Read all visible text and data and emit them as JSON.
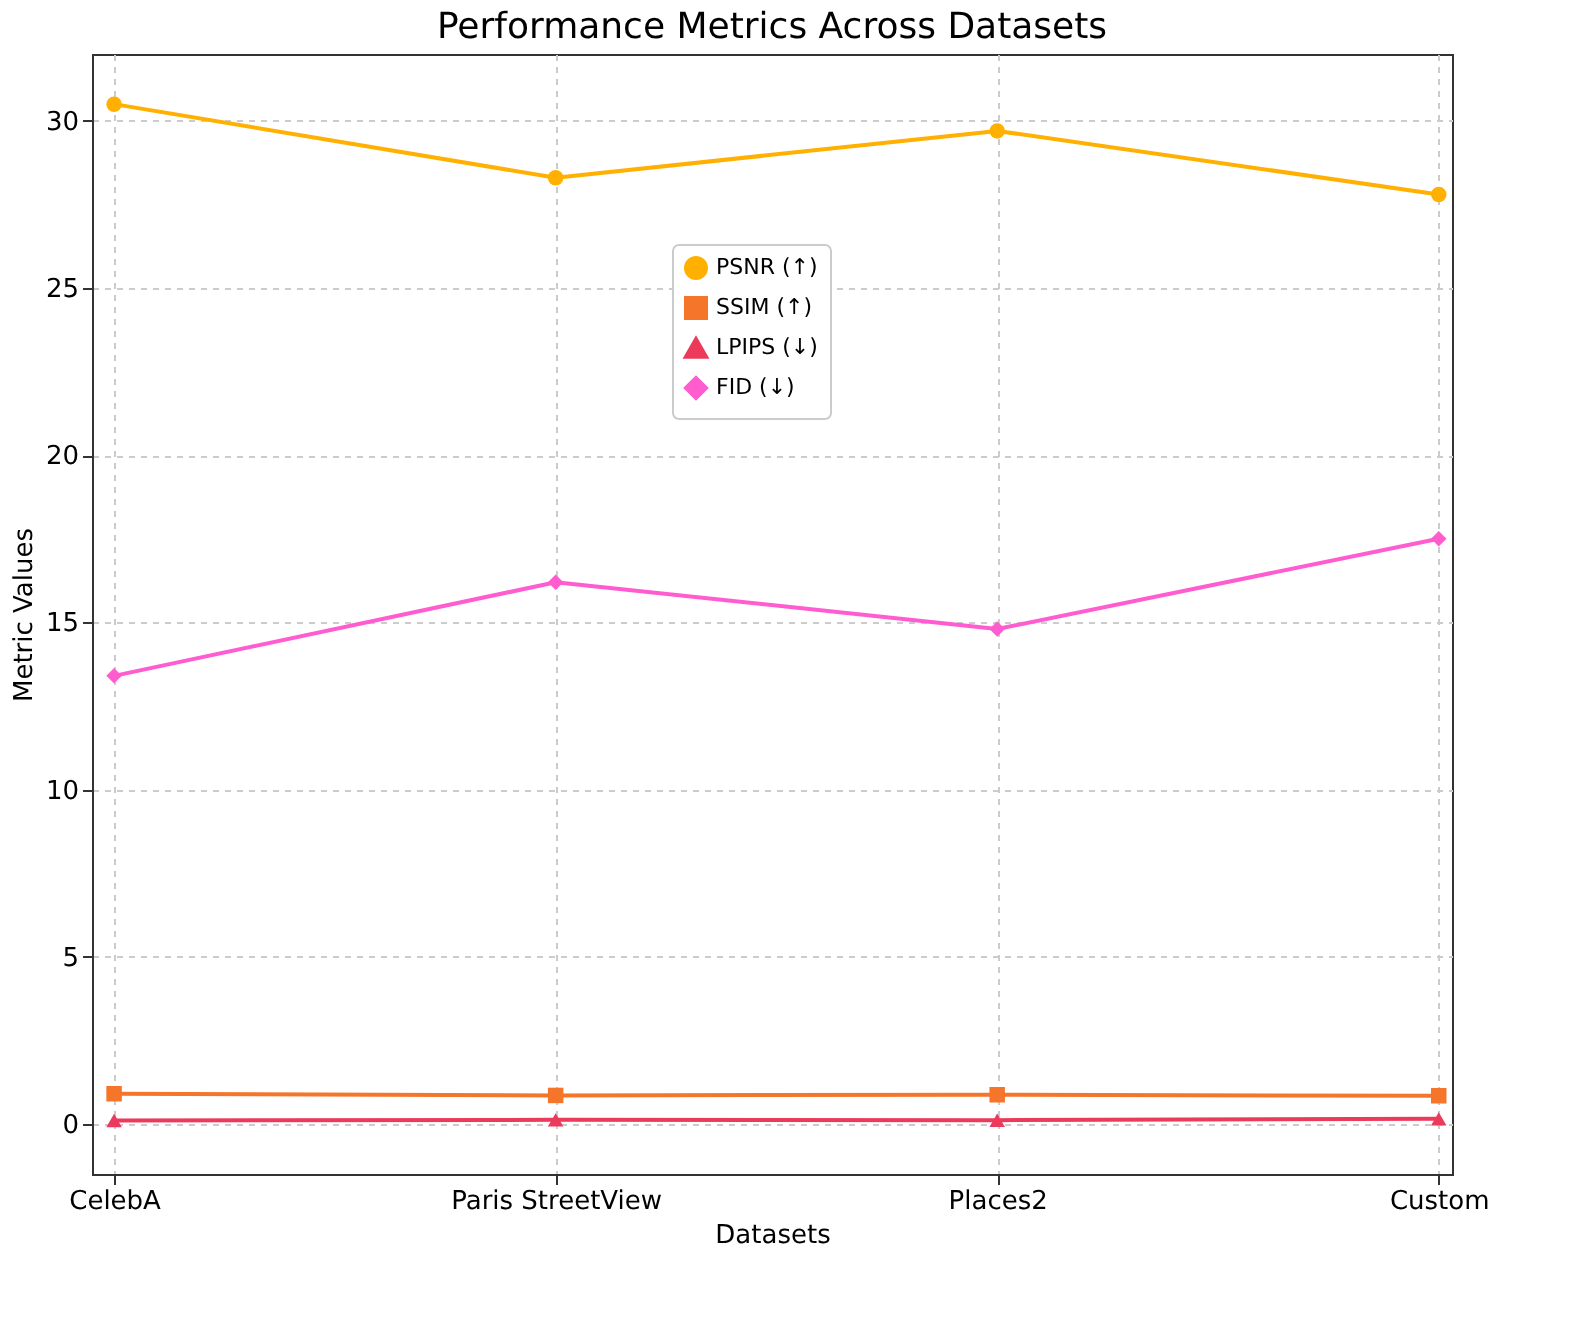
{
  "chart_data": {
    "type": "line",
    "title": "Performance Metrics Across Datasets",
    "xlabel": "Datasets",
    "ylabel": "Metric Values",
    "categories": [
      "CelebA",
      "Paris StreetView",
      "Places2",
      "Custom"
    ],
    "series": [
      {
        "name": "PSNR (↑)",
        "color": "#ffb000",
        "marker": "circle",
        "values": [
          30.5,
          28.3,
          29.7,
          27.8
        ]
      },
      {
        "name": "SSIM (↑)",
        "color": "#f5752b",
        "marker": "square",
        "values": [
          0.9,
          0.85,
          0.87,
          0.84
        ]
      },
      {
        "name": "LPIPS (↓)",
        "color": "#ec3a5c",
        "marker": "triangle",
        "values": [
          0.1,
          0.12,
          0.11,
          0.15
        ]
      },
      {
        "name": "FID (↓)",
        "color": "#ff5cd0",
        "marker": "diamond",
        "values": [
          13.4,
          16.2,
          14.8,
          17.5
        ]
      }
    ],
    "ylim": [
      -1.5,
      32
    ],
    "yticks": [
      0,
      5,
      10,
      15,
      20,
      25,
      30
    ],
    "grid": true,
    "legend": "top",
    "line_style": "solid"
  }
}
